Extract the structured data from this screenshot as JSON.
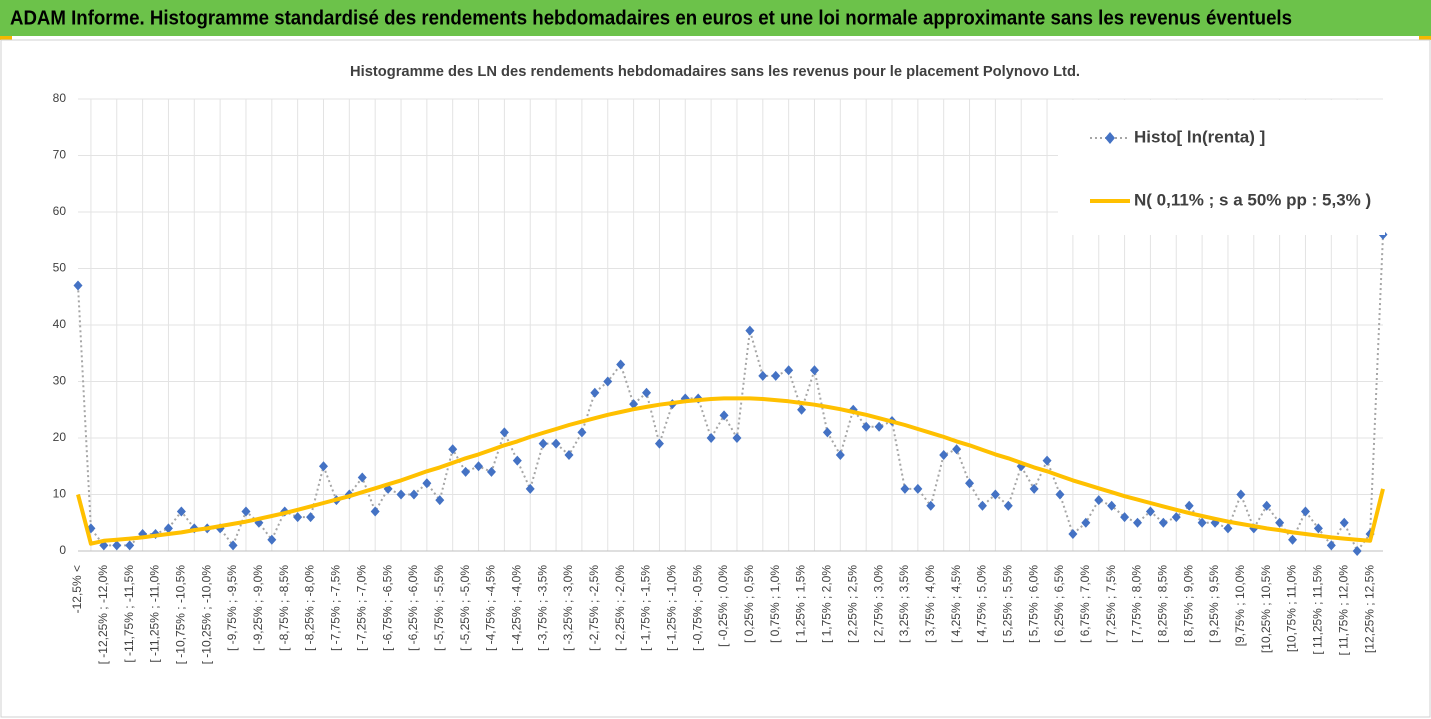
{
  "header": {
    "title": "ADAM Informe. Histogramme standardisé des rendements hebdomadaires en euros et une loi normale approximante sans les revenus éventuels"
  },
  "chart_data": {
    "type": "line",
    "title": "Histogramme des LN des rendements hebdomadaires sans les revenus pour le placement Polynovo Ltd.",
    "categories": [
      "-12,5% <",
      null,
      "[ -12,25% ; -12,0%",
      null,
      "[ -11,75% ; -11,5%",
      null,
      "[ -11,25% ; -11,0%",
      null,
      "[ -10,75% ; -10,5%",
      null,
      "[ -10,25% ; -10,0%",
      null,
      "[ -9,75% ; -9,5%",
      null,
      "[ -9,25% ; -9,0%",
      null,
      "[ -8,75% ; -8,5%",
      null,
      "[ -8,25% ; -8,0%",
      null,
      "[ -7,75% ; -7,5%",
      null,
      "[ -7,25% ; -7,0%",
      null,
      "[ -6,75% ; -6,5%",
      null,
      "[ -6,25% ; -6,0%",
      null,
      "[ -5,75% ; -5,5%",
      null,
      "[ -5,25% ; -5,0%",
      null,
      "[ -4,75% ; -4,5%",
      null,
      "[ -4,25% ; -4,0%",
      null,
      "[ -3,75% ; -3,5%",
      null,
      "[ -3,25% ; -3,0%",
      null,
      "[ -2,75% ; -2,5%",
      null,
      "[ -2,25% ; -2,0%",
      null,
      "[ -1,75% ; -1,5%",
      null,
      "[ -1,25% ; -1,0%",
      null,
      "[ -0,75% ; -0,5%",
      null,
      "[ -0,25% ; 0,0%",
      null,
      "[ 0,25% ; 0,5%",
      null,
      "[ 0,75% ; 1,0%",
      null,
      "[ 1,25% ; 1,5%",
      null,
      "[ 1,75% ; 2,0%",
      null,
      "[ 2,25% ; 2,5%",
      null,
      "[ 2,75% ; 3,0%",
      null,
      "[ 3,25% ; 3,5%",
      null,
      "[ 3,75% ; 4,0%",
      null,
      "[ 4,25% ; 4,5%",
      null,
      "[ 4,75% ; 5,0%",
      null,
      "[ 5,25% ; 5,5%",
      null,
      "[ 5,75% ; 6,0%",
      null,
      "[ 6,25% ; 6,5%",
      null,
      "[ 6,75% ; 7,0%",
      null,
      "[ 7,25% ; 7,5%",
      null,
      "[ 7,75% ; 8,0%",
      null,
      "[ 8,25% ; 8,5%",
      null,
      "[ 8,75% ; 9,0%",
      null,
      "[ 9,25% ; 9,5%",
      null,
      "[9,75% ; 10,0%",
      null,
      "[10,25% ; 10,5%",
      null,
      "[10,75% ; 11,0%",
      null,
      "[ 11,25% ; 11,5%",
      null,
      "[ 11,75% ; 12,0%",
      null,
      "[12,25% ; 12,5%",
      null
    ],
    "series": [
      {
        "name": "Histo[ ln(renta) ]",
        "color": "#4472c4",
        "values": [
          47,
          4,
          1,
          1,
          1,
          3,
          3,
          4,
          7,
          4,
          4,
          4,
          1,
          7,
          5,
          2,
          7,
          6,
          6,
          15,
          9,
          10,
          13,
          7,
          11,
          10,
          10,
          12,
          9,
          18,
          14,
          15,
          14,
          21,
          16,
          11,
          19,
          19,
          17,
          21,
          28,
          30,
          33,
          26,
          28,
          19,
          26,
          27,
          27,
          20,
          24,
          20,
          39,
          31,
          31,
          32,
          25,
          32,
          21,
          17,
          25,
          22,
          22,
          23,
          11,
          11,
          8,
          17,
          18,
          12,
          8,
          10,
          8,
          15,
          11,
          16,
          10,
          3,
          5,
          9,
          8,
          6,
          5,
          7,
          5,
          6,
          8,
          5,
          5,
          4,
          10,
          4,
          8,
          5,
          2,
          7,
          4,
          1,
          5,
          0,
          3,
          56
        ]
      },
      {
        "name": "N( 0,11% ; s a 50% pp : 5,3% )",
        "color": "#ffc000",
        "values": [
          10,
          1.3,
          1.8,
          2.0,
          2.2,
          2.4,
          2.7,
          3.0,
          3.3,
          3.7,
          4.0,
          4.4,
          4.8,
          5.2,
          5.7,
          6.2,
          6.7,
          7.3,
          7.9,
          8.5,
          9.1,
          9.7,
          10.4,
          11.1,
          11.8,
          12.5,
          13.3,
          14.1,
          14.8,
          15.6,
          16.4,
          17.1,
          17.9,
          18.7,
          19.4,
          20.2,
          20.9,
          21.6,
          22.3,
          22.9,
          23.5,
          24.1,
          24.6,
          25.1,
          25.5,
          25.9,
          26.2,
          26.5,
          26.7,
          26.9,
          27.0,
          27.0,
          27.0,
          26.9,
          26.7,
          26.5,
          26.2,
          25.9,
          25.5,
          25.1,
          24.6,
          24.1,
          23.5,
          22.9,
          22.3,
          21.6,
          20.9,
          20.2,
          19.4,
          18.7,
          17.9,
          17.1,
          16.4,
          15.6,
          14.8,
          14.1,
          13.3,
          12.5,
          11.8,
          11.1,
          10.4,
          9.7,
          9.1,
          8.5,
          7.9,
          7.3,
          6.7,
          6.2,
          5.7,
          5.2,
          4.8,
          4.4,
          4.0,
          3.7,
          3.3,
          3.0,
          2.7,
          2.4,
          2.2,
          2.0,
          1.8,
          11
        ]
      }
    ],
    "ylim": [
      0,
      80
    ],
    "yticks": [
      0,
      10,
      20,
      30,
      40,
      50,
      60,
      70,
      80
    ],
    "grid": true,
    "legend": "top-right"
  }
}
